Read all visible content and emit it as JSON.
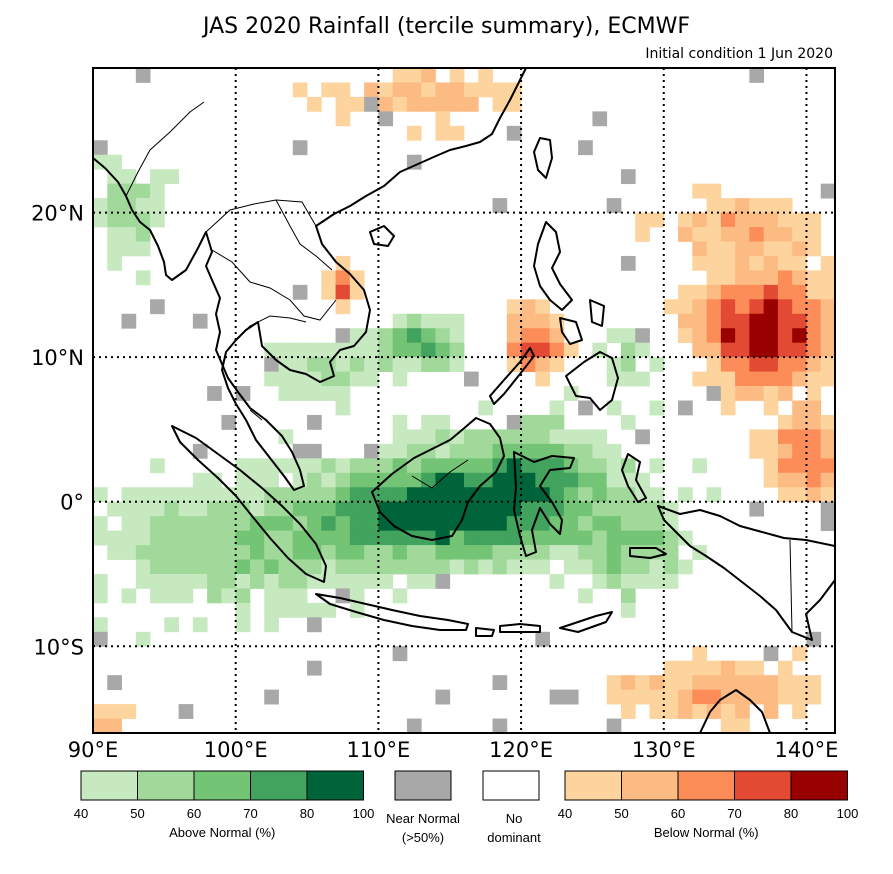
{
  "title": "JAS 2020 Rainfall (tercile summary), ECMWF",
  "subtitle": "Initial condition 1 Jun 2020",
  "colors": {
    "above": [
      "#c7e9c0",
      "#a1d99b",
      "#74c476",
      "#41a35d",
      "#00643a"
    ],
    "near": "#a8a8a8",
    "none": "#ffffff",
    "below": [
      "#fdd49e",
      "#fdbb84",
      "#fc8d59",
      "#e34a33",
      "#990000"
    ]
  },
  "map": {
    "lon_range": [
      90,
      142
    ],
    "lat_range": [
      -16,
      30
    ],
    "lon_ticks": [
      {
        "value": 90,
        "label": "90°E"
      },
      {
        "value": 100,
        "label": "100°E"
      },
      {
        "value": 110,
        "label": "110°E"
      },
      {
        "value": 120,
        "label": "120°E"
      },
      {
        "value": 130,
        "label": "130°E"
      },
      {
        "value": 140,
        "label": "140°E"
      }
    ],
    "lat_ticks": [
      {
        "value": 20,
        "label": "20°N"
      },
      {
        "value": 10,
        "label": "10°N"
      },
      {
        "value": 0,
        "label": "0°"
      },
      {
        "value": -10,
        "label": "10°S"
      }
    ]
  },
  "legend": {
    "above": {
      "caption": "Above Normal (%)",
      "ticks": [
        "40",
        "50",
        "60",
        "70",
        "80",
        "100"
      ]
    },
    "near": {
      "caption_line1": "Near Normal",
      "caption_line2": "(>50%)"
    },
    "none": {
      "caption_line1": "No",
      "caption_line2": "dominant"
    },
    "below": {
      "caption": "Below Normal (%)",
      "ticks": [
        "40",
        "50",
        "60",
        "70",
        "80",
        "100"
      ]
    }
  }
}
